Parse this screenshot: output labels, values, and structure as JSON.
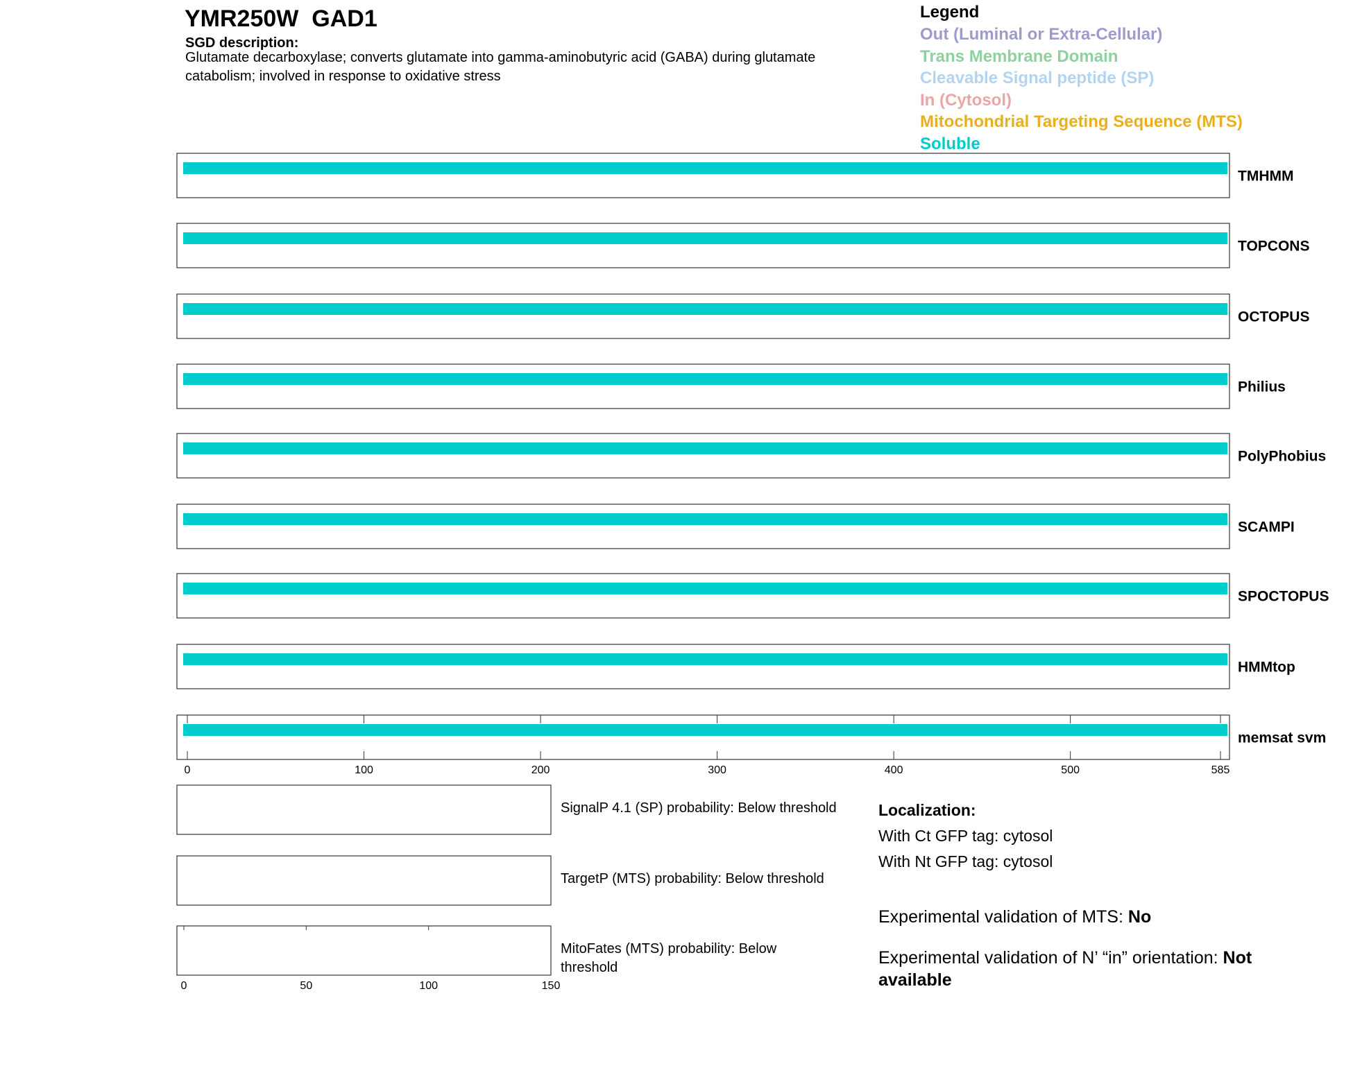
{
  "header": {
    "title": "YMR250W  GAD1",
    "description_label": "SGD description:",
    "description": "Glutamate decarboxylase; converts glutamate into gamma-aminobutyric acid (GABA) during glutamate catabolism; involved in response to oxidative stress"
  },
  "legend": {
    "title": "Legend",
    "items": [
      {
        "label": "Out (Luminal or Extra-Cellular)",
        "color": "#9c9ccc"
      },
      {
        "label": "Trans Membrane Domain",
        "color": "#8fd19e"
      },
      {
        "label": "Cleavable Signal peptide (SP)",
        "color": "#b3d4f0"
      },
      {
        "label": "In (Cytosol)",
        "color": "#eba5a5"
      },
      {
        "label": "Mitochondrial Targeting Sequence (MTS)",
        "color": "#e8b020"
      },
      {
        "label": "Soluble",
        "color": "#00cccc"
      }
    ]
  },
  "topology": {
    "xlim": [
      0,
      585
    ],
    "xticks": [
      0,
      100,
      200,
      300,
      400,
      500,
      585
    ],
    "tracks": [
      {
        "name": "TMHMM",
        "segments": [
          {
            "start": 0,
            "end": 585,
            "color": "#00cccc"
          }
        ]
      },
      {
        "name": "TOPCONS",
        "segments": [
          {
            "start": 0,
            "end": 585,
            "color": "#00cccc"
          }
        ]
      },
      {
        "name": "OCTOPUS",
        "segments": [
          {
            "start": 0,
            "end": 585,
            "color": "#00cccc"
          }
        ]
      },
      {
        "name": "Philius",
        "segments": [
          {
            "start": 0,
            "end": 585,
            "color": "#00cccc"
          }
        ]
      },
      {
        "name": "PolyPhobius",
        "segments": [
          {
            "start": 0,
            "end": 585,
            "color": "#00cccc"
          }
        ]
      },
      {
        "name": "SCAMPI",
        "segments": [
          {
            "start": 0,
            "end": 585,
            "color": "#00cccc"
          }
        ]
      },
      {
        "name": "SPOCTOPUS",
        "segments": [
          {
            "start": 0,
            "end": 585,
            "color": "#00cccc"
          }
        ]
      },
      {
        "name": "HMMtop",
        "segments": [
          {
            "start": 0,
            "end": 585,
            "color": "#00cccc"
          }
        ]
      },
      {
        "name": "memsat svm",
        "segments": [
          {
            "start": 0,
            "end": 585,
            "color": "#00cccc"
          }
        ]
      }
    ]
  },
  "probability": {
    "xlim": [
      0,
      150
    ],
    "xticks": [
      0,
      50,
      100,
      150
    ],
    "panels": [
      {
        "label": "SignalP 4.1 (SP) probability: Below threshold"
      },
      {
        "label": "TargetP (MTS) probability: Below threshold"
      },
      {
        "label": "MitoFates (MTS) probability: Below threshold"
      }
    ]
  },
  "localization": {
    "title": "Localization:",
    "lines": [
      "With Ct GFP tag: cytosol",
      "With Nt GFP tag: cytosol"
    ],
    "validation": [
      {
        "label": "Experimental validation of MTS:",
        "value": "No"
      },
      {
        "label": "Experimental validation of N’ “in” orientation:",
        "value": "Not available"
      }
    ]
  }
}
